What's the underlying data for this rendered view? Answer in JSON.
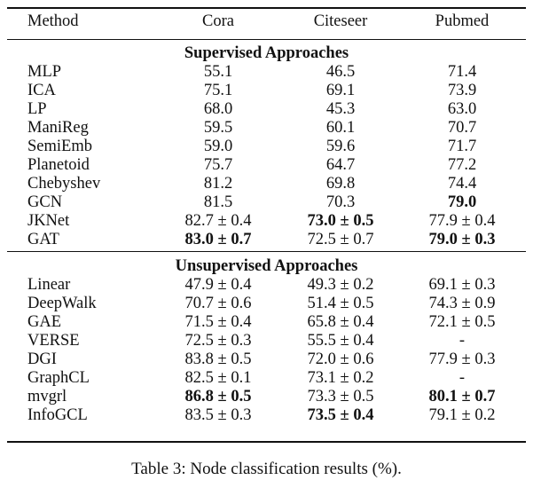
{
  "headers": [
    "Method",
    "Cora",
    "Citeseer",
    "Pubmed"
  ],
  "sections": [
    {
      "title": "Supervised Approaches",
      "rows": [
        {
          "method": "MLP",
          "cells": [
            {
              "v": "55.1"
            },
            {
              "v": "46.5"
            },
            {
              "v": "71.4"
            }
          ]
        },
        {
          "method": "ICA",
          "cells": [
            {
              "v": "75.1"
            },
            {
              "v": "69.1"
            },
            {
              "v": "73.9"
            }
          ]
        },
        {
          "method": "LP",
          "cells": [
            {
              "v": "68.0"
            },
            {
              "v": "45.3"
            },
            {
              "v": "63.0"
            }
          ]
        },
        {
          "method": "ManiReg",
          "cells": [
            {
              "v": "59.5"
            },
            {
              "v": "60.1"
            },
            {
              "v": "70.7"
            }
          ]
        },
        {
          "method": "SemiEmb",
          "cells": [
            {
              "v": "59.0"
            },
            {
              "v": "59.6"
            },
            {
              "v": "71.7"
            }
          ]
        },
        {
          "method": "Planetoid",
          "cells": [
            {
              "v": "75.7"
            },
            {
              "v": "64.7"
            },
            {
              "v": "77.2"
            }
          ]
        },
        {
          "method": "Chebyshev",
          "cells": [
            {
              "v": "81.2"
            },
            {
              "v": "69.8"
            },
            {
              "v": "74.4"
            }
          ]
        },
        {
          "method": "GCN",
          "cells": [
            {
              "v": "81.5"
            },
            {
              "v": "70.3"
            },
            {
              "v": "79.0",
              "bold": true
            }
          ]
        },
        {
          "method": "JKNet",
          "cells": [
            {
              "v": "82.7 ± 0.4"
            },
            {
              "v": "73.0 ± 0.5",
              "bold": true
            },
            {
              "v": "77.9 ± 0.4"
            }
          ]
        },
        {
          "method": "GAT",
          "cells": [
            {
              "v": "83.0 ± 0.7",
              "bold": true
            },
            {
              "v": "72.5 ± 0.7"
            },
            {
              "v": "79.0 ± 0.3",
              "bold": true
            }
          ]
        }
      ]
    },
    {
      "title": "Unsupervised Approaches",
      "rows": [
        {
          "method": "Linear",
          "cells": [
            {
              "v": "47.9 ± 0.4"
            },
            {
              "v": "49.3 ± 0.2"
            },
            {
              "v": "69.1 ± 0.3"
            }
          ]
        },
        {
          "method": "DeepWalk",
          "cells": [
            {
              "v": "70.7 ± 0.6"
            },
            {
              "v": "51.4 ± 0.5"
            },
            {
              "v": "74.3 ± 0.9"
            }
          ]
        },
        {
          "method": "GAE",
          "cells": [
            {
              "v": "71.5 ± 0.4"
            },
            {
              "v": "65.8 ± 0.4"
            },
            {
              "v": "72.1 ± 0.5"
            }
          ]
        },
        {
          "method": "VERSE",
          "cells": [
            {
              "v": "72.5 ± 0.3"
            },
            {
              "v": "55.5 ± 0.4"
            },
            {
              "v": "-"
            }
          ]
        },
        {
          "method": "DGI",
          "cells": [
            {
              "v": "83.8 ± 0.5"
            },
            {
              "v": "72.0 ± 0.6"
            },
            {
              "v": "77.9 ± 0.3"
            }
          ]
        },
        {
          "method": "GraphCL",
          "cells": [
            {
              "v": "82.5 ± 0.1"
            },
            {
              "v": "73.1 ± 0.2"
            },
            {
              "v": "-"
            }
          ]
        },
        {
          "method": "mvgrl",
          "cells": [
            {
              "v": "86.8 ± 0.5",
              "bold": true
            },
            {
              "v": "73.3 ± 0.5"
            },
            {
              "v": "80.1 ± 0.7",
              "bold": true
            }
          ]
        },
        {
          "method": "InfoGCL",
          "cells": [
            {
              "v": "83.5 ± 0.3"
            },
            {
              "v": "73.5 ± 0.4",
              "bold": true
            },
            {
              "v": "79.1 ± 0.2"
            }
          ]
        }
      ]
    }
  ],
  "caption": "Table 3: Node classification results (%)."
}
